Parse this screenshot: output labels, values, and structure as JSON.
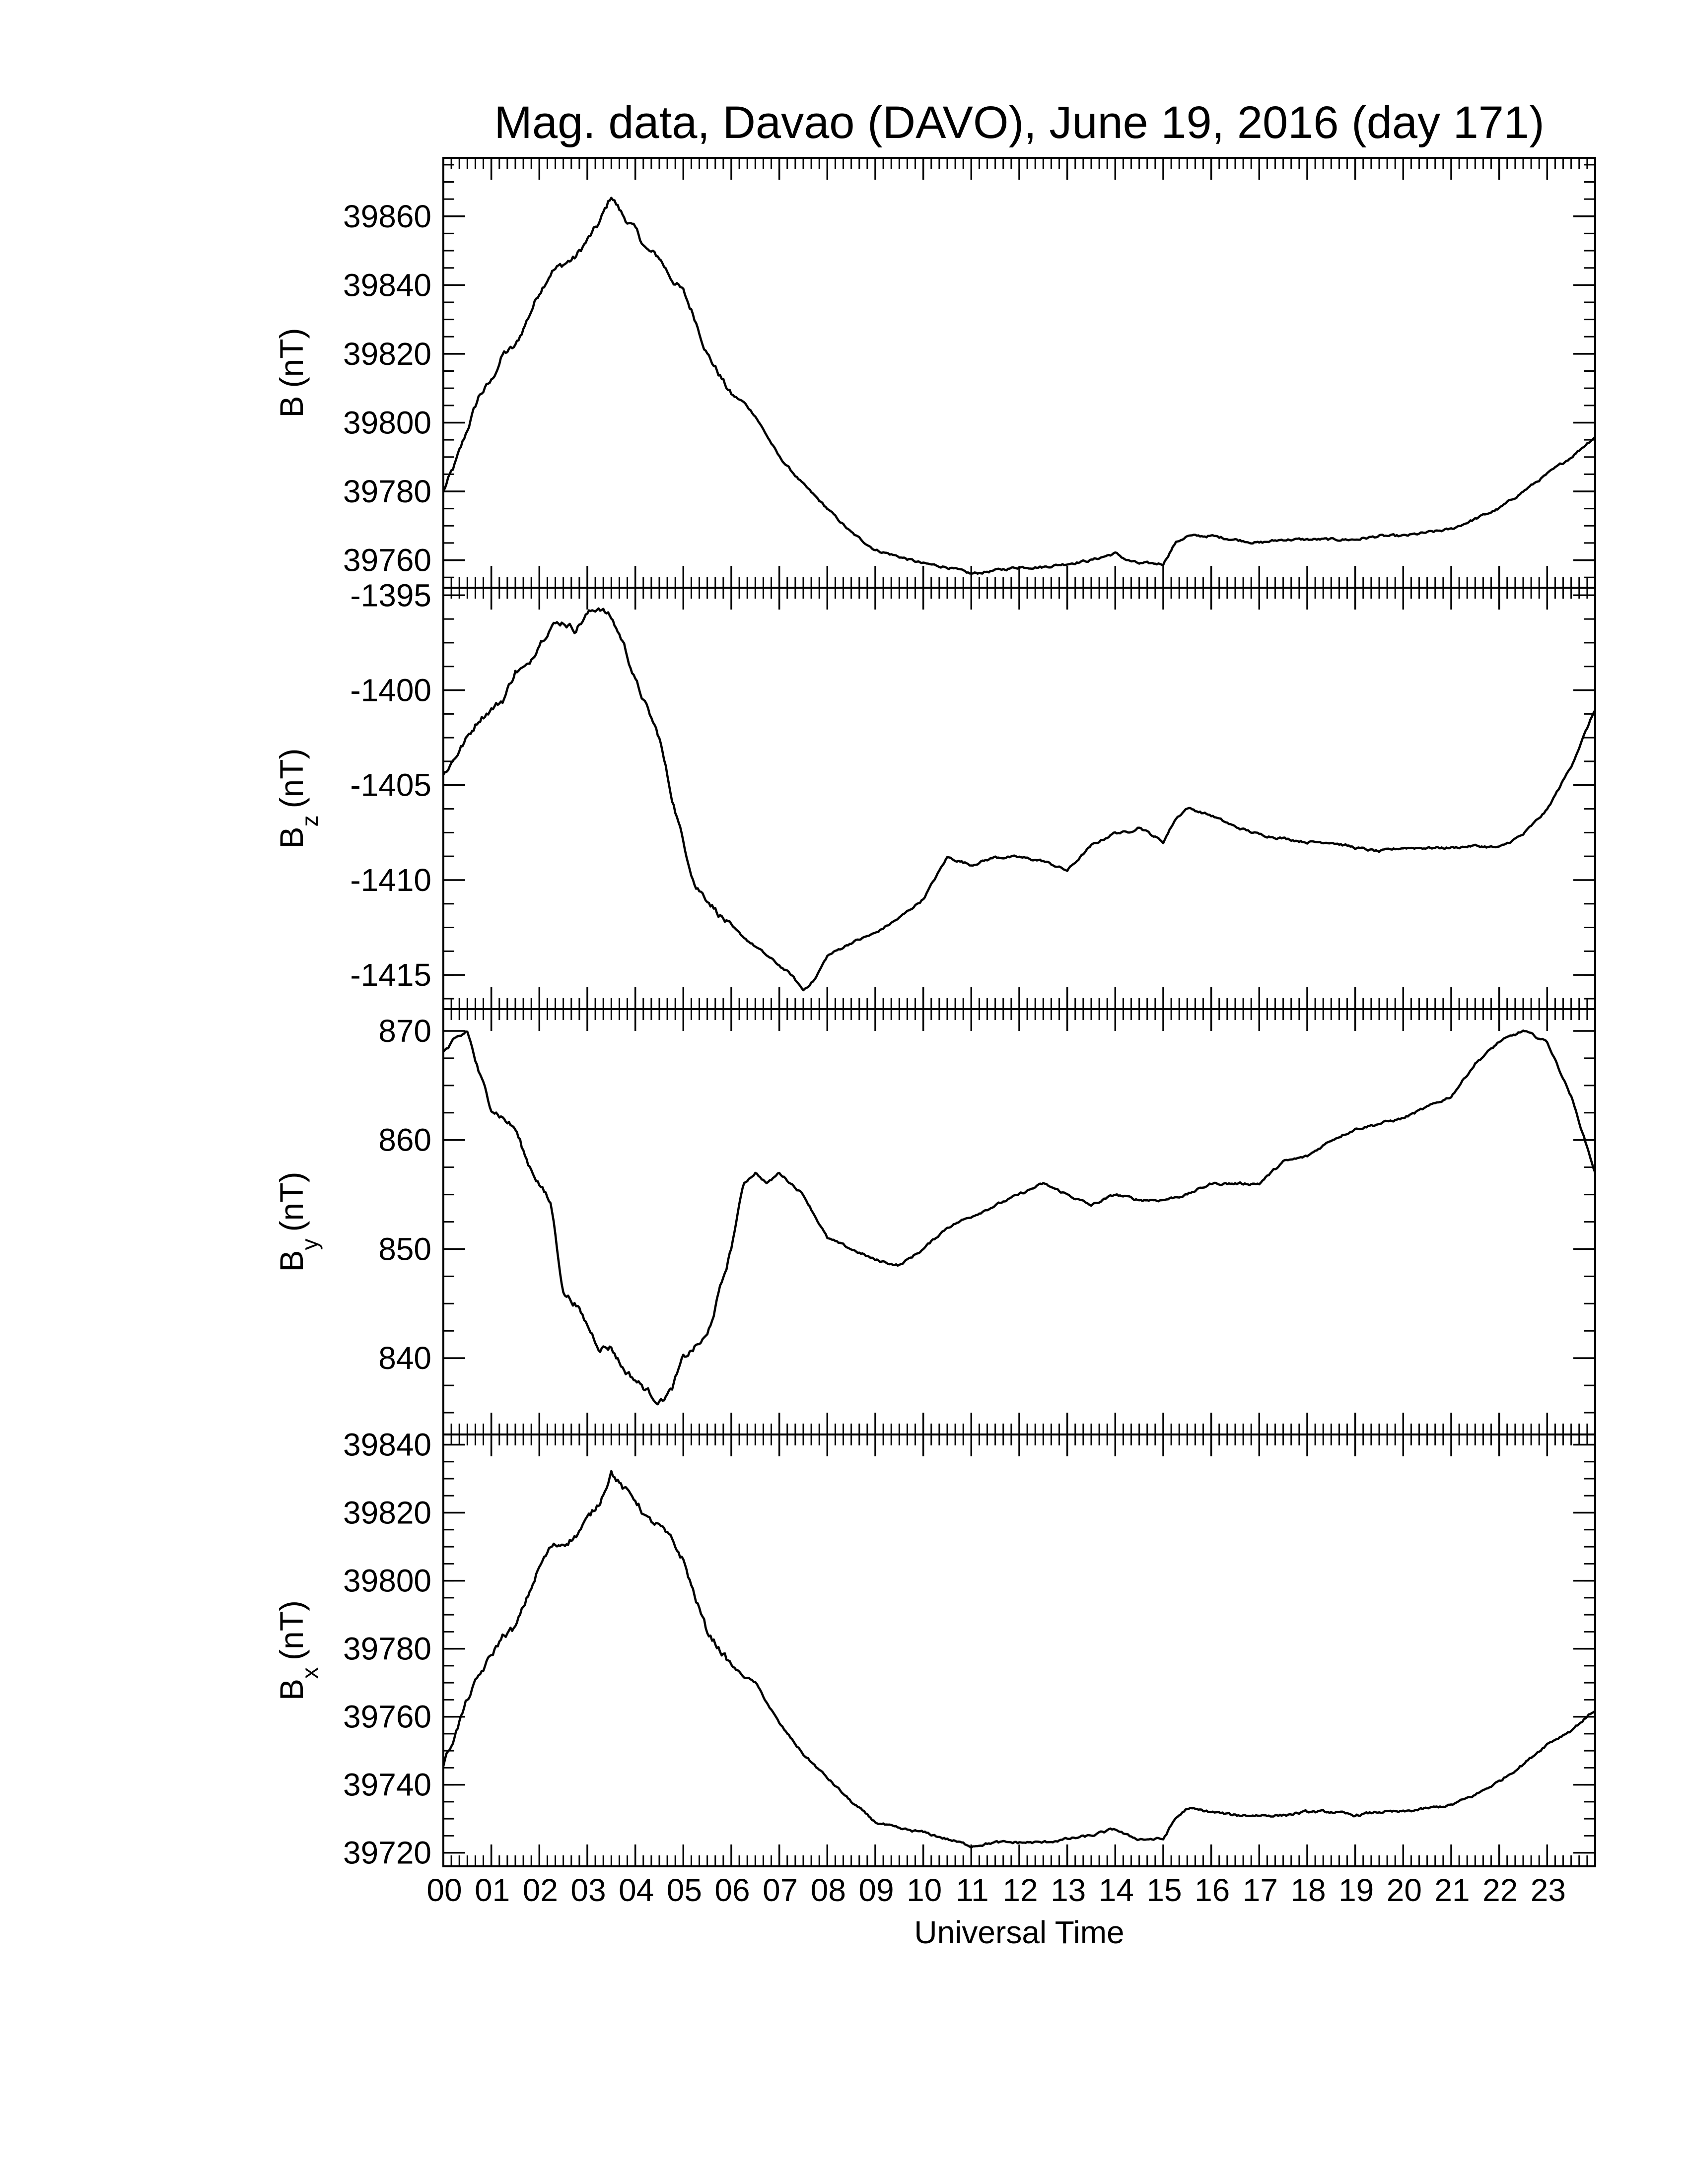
{
  "figure": {
    "title": "Mag. data, Davao (DAVO), June 19, 2016 (day 171)",
    "xlabel": "Universal Time"
  },
  "chart_data": [
    {
      "type": "line",
      "ylabel_main": "B",
      "ylabel_sub": "",
      "ylabel_unit": "(nT)",
      "x_unit": "hours UT",
      "xlim": [
        0,
        24
      ],
      "ylim": [
        39752,
        39877
      ],
      "yticks": [
        39760,
        39780,
        39800,
        39820,
        39840,
        39860
      ],
      "ytick_labels": [
        "39760",
        "39780",
        "39800",
        "39820",
        "39840",
        "39860"
      ],
      "x": [
        0,
        0.25,
        0.5,
        0.75,
        1,
        1.25,
        1.5,
        1.75,
        2,
        2.25,
        2.5,
        2.75,
        3,
        3.25,
        3.5,
        3.75,
        4,
        4.25,
        4.5,
        4.75,
        5,
        5.25,
        5.5,
        5.75,
        6,
        6.25,
        6.5,
        6.75,
        7,
        7.5,
        8,
        8.5,
        9,
        9.5,
        10,
        10.5,
        11,
        11.5,
        12,
        12.5,
        13,
        13.5,
        14,
        14.25,
        14.5,
        15,
        15.25,
        15.5,
        16,
        16.5,
        17,
        17.5,
        18,
        18.5,
        19,
        19.5,
        20,
        20.5,
        21,
        21.5,
        22,
        22.5,
        23,
        23.5,
        24
      ],
      "y": [
        39780,
        39788,
        39798,
        39808,
        39812,
        39820,
        39822,
        39830,
        39838,
        39844,
        39846,
        39848,
        39853,
        39858,
        39866,
        39860,
        39856,
        39850,
        39848,
        39842,
        39838,
        39830,
        39820,
        39814,
        39808,
        39806,
        39802,
        39796,
        39790,
        39782,
        39775,
        39768,
        39763,
        39761,
        39759,
        39758,
        39756,
        39757,
        39758,
        39758,
        39759,
        39760,
        39762,
        39760,
        39759,
        39759,
        39765,
        39767,
        39767,
        39766,
        39765,
        39766,
        39766,
        39766,
        39766,
        39767,
        39767,
        39768,
        39769,
        39772,
        39775,
        39780,
        39785,
        39790,
        39796
      ]
    },
    {
      "type": "line",
      "ylabel_main": "B",
      "ylabel_sub": "z",
      "ylabel_unit": "(nT)",
      "x_unit": "hours UT",
      "xlim": [
        0,
        24
      ],
      "ylim": [
        -1416.8,
        -1394.6
      ],
      "yticks": [
        -1415,
        -1410,
        -1405,
        -1400,
        -1395
      ],
      "ytick_labels": [
        "-1415",
        "-1410",
        "-1405",
        "-1400",
        "-1395"
      ],
      "x": [
        0,
        0.25,
        0.5,
        0.75,
        1,
        1.25,
        1.5,
        1.75,
        2,
        2.25,
        2.5,
        2.75,
        3,
        3.25,
        3.5,
        3.75,
        4,
        4.25,
        4.5,
        4.75,
        5,
        5.25,
        5.5,
        5.75,
        6,
        6.25,
        6.5,
        6.75,
        7,
        7.25,
        7.5,
        7.75,
        8,
        8.5,
        9,
        9.5,
        10,
        10.5,
        11,
        11.5,
        12,
        12.5,
        13,
        13.5,
        14,
        14.25,
        14.5,
        15,
        15.25,
        15.5,
        16,
        16.5,
        17,
        17.5,
        18,
        18.5,
        19,
        19.5,
        20,
        20.5,
        21,
        21.5,
        22,
        22.5,
        23,
        23.5,
        24
      ],
      "y": [
        -1404.5,
        -1403.5,
        -1402.5,
        -1401.5,
        -1401.0,
        -1400.5,
        -1399.0,
        -1398.8,
        -1397.5,
        -1396.6,
        -1396.4,
        -1396.8,
        -1396.0,
        -1395.6,
        -1396.2,
        -1397.5,
        -1399.5,
        -1401.0,
        -1402.5,
        -1405.5,
        -1408.0,
        -1410.3,
        -1411.0,
        -1411.8,
        -1412.5,
        -1413.0,
        -1413.5,
        -1414.0,
        -1414.5,
        -1415.0,
        -1415.8,
        -1415.2,
        -1414.0,
        -1413.3,
        -1412.8,
        -1412.0,
        -1411.0,
        -1408.8,
        -1409.2,
        -1408.8,
        -1408.8,
        -1409.0,
        -1409.5,
        -1408.2,
        -1407.5,
        -1407.5,
        -1407.2,
        -1408.0,
        -1406.8,
        -1406.2,
        -1406.6,
        -1407.2,
        -1407.6,
        -1407.8,
        -1408.0,
        -1408.0,
        -1408.3,
        -1408.5,
        -1408.3,
        -1408.3,
        -1408.3,
        -1408.2,
        -1408.3,
        -1407.6,
        -1406.3,
        -1404.0,
        -1401.0
      ]
    },
    {
      "type": "line",
      "ylabel_main": "B",
      "ylabel_sub": "y",
      "ylabel_unit": "(nT)",
      "x_unit": "hours UT",
      "xlim": [
        0,
        24
      ],
      "ylim": [
        833,
        872
      ],
      "yticks": [
        840,
        850,
        860,
        870
      ],
      "ytick_labels": [
        "840",
        "850",
        "860",
        "870"
      ],
      "x": [
        0,
        0.25,
        0.5,
        0.75,
        1,
        1.25,
        1.5,
        1.75,
        2,
        2.25,
        2.5,
        2.75,
        3,
        3.25,
        3.5,
        3.75,
        4,
        4.25,
        4.5,
        4.75,
        5,
        5.25,
        5.5,
        5.75,
        6,
        6.25,
        6.5,
        6.75,
        7,
        7.5,
        8,
        8.5,
        9,
        9.5,
        10,
        10.5,
        11,
        11.5,
        12,
        12.5,
        13,
        13.5,
        14,
        14.5,
        15,
        15.5,
        16,
        16.5,
        17,
        17.5,
        18,
        18.5,
        19,
        19.5,
        20,
        20.5,
        21,
        21.5,
        22,
        22.5,
        23,
        23.5,
        24
      ],
      "y": [
        868,
        869,
        870,
        866,
        863,
        862,
        861,
        858,
        856,
        854,
        846,
        845,
        843,
        841,
        841,
        839,
        838,
        837,
        836,
        837,
        840,
        841,
        842,
        846,
        850,
        856,
        857,
        856,
        857,
        855,
        851,
        850,
        849,
        848.5,
        850,
        852,
        853,
        854,
        855,
        856,
        855,
        854,
        855,
        854.5,
        854.5,
        855,
        856,
        856,
        856,
        858,
        858.5,
        860,
        861,
        861.5,
        862,
        863,
        864,
        867,
        869,
        870,
        869,
        864,
        857
      ]
    },
    {
      "type": "line",
      "ylabel_main": "B",
      "ylabel_sub": "x",
      "ylabel_unit": "(nT)",
      "x_unit": "hours UT",
      "xlim": [
        0,
        24
      ],
      "ylim": [
        39716,
        39843
      ],
      "yticks": [
        39720,
        39740,
        39760,
        39780,
        39800,
        39820,
        39840
      ],
      "ytick_labels": [
        "39720",
        "39740",
        "39760",
        "39780",
        "39800",
        "39820",
        "39840"
      ],
      "x": [
        0,
        0.25,
        0.5,
        0.75,
        1,
        1.25,
        1.5,
        1.75,
        2,
        2.25,
        2.5,
        2.75,
        3,
        3.25,
        3.5,
        3.75,
        4,
        4.25,
        4.5,
        4.75,
        5,
        5.25,
        5.5,
        5.75,
        6,
        6.25,
        6.5,
        6.75,
        7,
        7.5,
        8,
        8.5,
        9,
        9.5,
        10,
        10.5,
        11,
        11.5,
        12,
        12.5,
        13,
        13.5,
        14,
        14.25,
        14.5,
        15,
        15.25,
        15.5,
        16,
        16.5,
        17,
        17.5,
        18,
        18.5,
        19,
        19.5,
        20,
        20.5,
        21,
        21.5,
        22,
        22.5,
        23,
        23.5,
        24
      ],
      "y": [
        39746,
        39755,
        39765,
        39772,
        39778,
        39784,
        39786,
        39795,
        39804,
        39810,
        39811,
        39813,
        39818,
        39823,
        39832,
        39827,
        39824,
        39818,
        39816,
        39812,
        39806,
        39795,
        39785,
        39780,
        39775,
        39772,
        39770,
        39764,
        39758,
        39749,
        39742,
        39735,
        39729,
        39727,
        39726,
        39724,
        39722,
        39723,
        39723,
        39723,
        39724,
        39725,
        39727,
        39725,
        39724,
        39724,
        39730,
        39733,
        39732,
        39731,
        39731,
        39731,
        39732,
        39732,
        39731,
        39732,
        39732,
        39733,
        39734,
        39737,
        39741,
        39746,
        39752,
        39756,
        39762
      ]
    }
  ],
  "x_axis": {
    "ticks": [
      0,
      1,
      2,
      3,
      4,
      5,
      6,
      7,
      8,
      9,
      10,
      11,
      12,
      13,
      14,
      15,
      16,
      17,
      18,
      19,
      20,
      21,
      22,
      23
    ],
    "tick_labels": [
      "00",
      "01",
      "02",
      "03",
      "04",
      "05",
      "06",
      "07",
      "08",
      "09",
      "10",
      "11",
      "12",
      "13",
      "14",
      "15",
      "16",
      "17",
      "18",
      "19",
      "20",
      "21",
      "22",
      "23"
    ]
  }
}
